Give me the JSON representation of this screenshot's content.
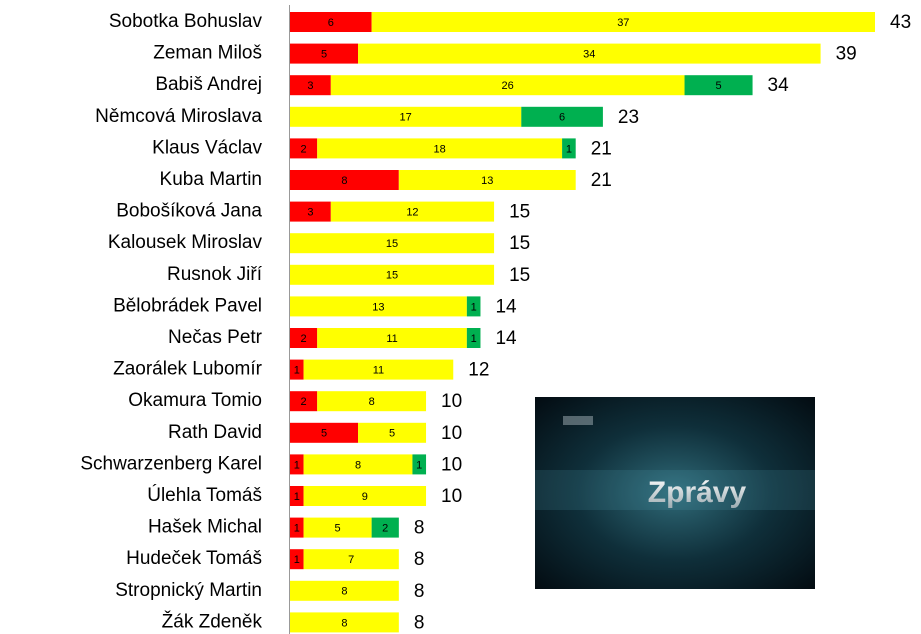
{
  "chart_data": {
    "type": "stacked-bar-horizontal",
    "categories": [
      "Sobotka Bohuslav",
      "Zeman Miloš",
      "Babiš Andrej",
      "Němcová Miroslava",
      "Klaus Václav",
      "Kuba Martin",
      "Bobošíková Jana",
      "Kalousek Miroslav",
      "Rusnok Jiří",
      "Bělobrádek Pavel",
      "Nečas Petr",
      "Zaorálek Lubomír",
      "Okamura Tomio",
      "Rath David",
      "Schwarzenberg Karel",
      "Úlehla Tomáš",
      "Hašek Michal",
      "Hudeček Tomáš",
      "Stropnický Martin",
      "Žák Zdeněk"
    ],
    "series": [
      {
        "color": "#ff0000",
        "values": [
          6,
          5,
          3,
          null,
          2,
          8,
          3,
          null,
          null,
          null,
          2,
          1,
          2,
          5,
          1,
          1,
          1,
          1,
          null,
          null
        ]
      },
      {
        "color": "#ffff00",
        "values": [
          37,
          34,
          26,
          17,
          18,
          13,
          12,
          15,
          15,
          13,
          11,
          11,
          8,
          5,
          8,
          9,
          5,
          7,
          8,
          8
        ]
      },
      {
        "color": "#00b050",
        "values": [
          null,
          null,
          5,
          6,
          1,
          null,
          null,
          null,
          null,
          1,
          1,
          null,
          null,
          null,
          1,
          null,
          2,
          null,
          null,
          null
        ]
      }
    ],
    "totals": [
      43,
      39,
      34,
      23,
      21,
      21,
      15,
      15,
      15,
      14,
      14,
      12,
      10,
      10,
      10,
      10,
      8,
      8,
      8,
      8
    ],
    "annotations": [
      "Zprávy"
    ]
  }
}
